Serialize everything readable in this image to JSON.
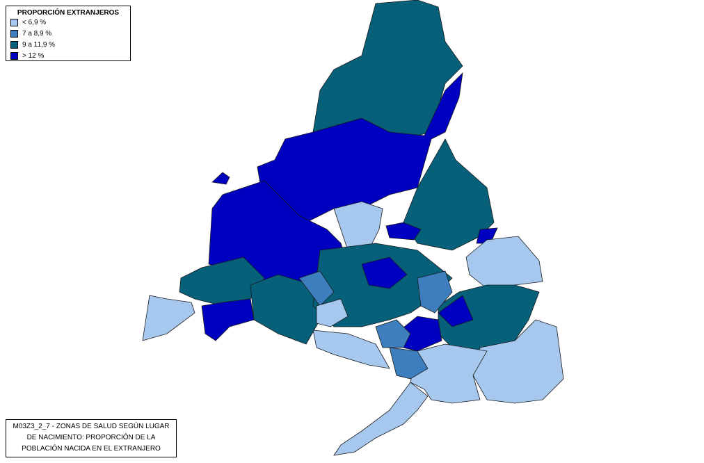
{
  "legend": {
    "title": "PROPORCIÓN EXTRANJEROS",
    "items": [
      {
        "label": "< 6,9 %",
        "color": "#a6c8ef"
      },
      {
        "label": "7 a 8,9 %",
        "color": "#3d7ebf"
      },
      {
        "label": "9 a 11,9 %",
        "color": "#06607a"
      },
      {
        "label": "> 12 %",
        "color": "#0000c0"
      }
    ]
  },
  "caption": {
    "lines": [
      "M03Z3_2_7 - ZONAS DE SALUD SEGÚN LUGAR",
      "DE NACIMIENTO: PROPORCIÓN DE LA",
      "POBLACIÓN NACIDA EN EL EXTRANJERO"
    ]
  }
}
